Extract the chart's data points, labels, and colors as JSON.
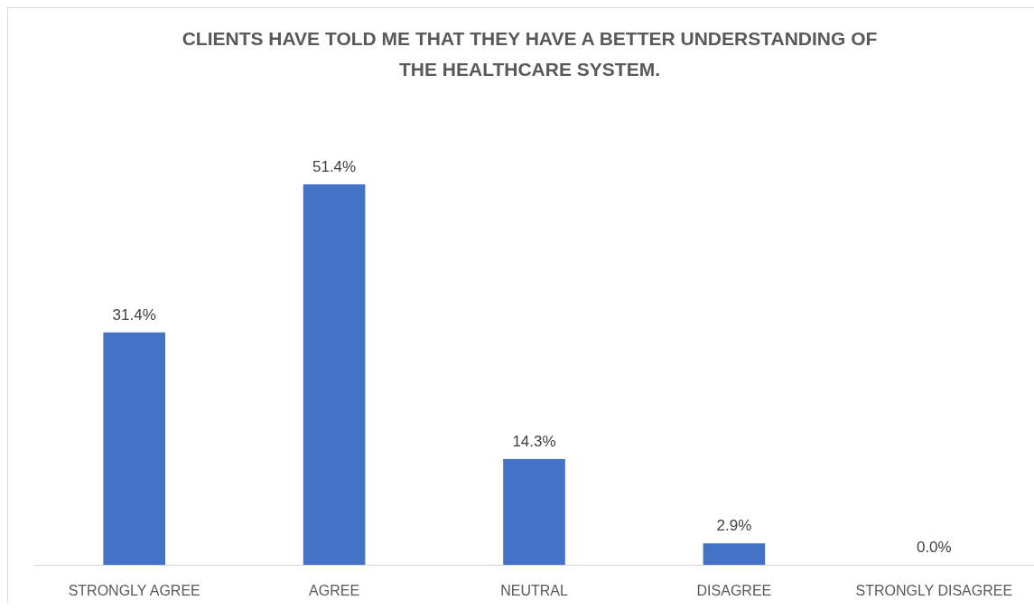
{
  "chart_data": {
    "type": "bar",
    "title": "CLIENTS HAVE TOLD ME THAT THEY HAVE A BETTER UNDERSTANDING OF THE HEALTHCARE SYSTEM.",
    "categories": [
      "STRONGLY AGREE",
      "AGREE",
      "NEUTRAL",
      "DISAGREE",
      "STRONGLY DISAGREE"
    ],
    "values": [
      31.4,
      51.4,
      14.3,
      2.9,
      0.0
    ],
    "value_labels": [
      "31.4%",
      "51.4%",
      "14.3%",
      "2.9%",
      "0.0%"
    ],
    "color": "#4472c4"
  }
}
